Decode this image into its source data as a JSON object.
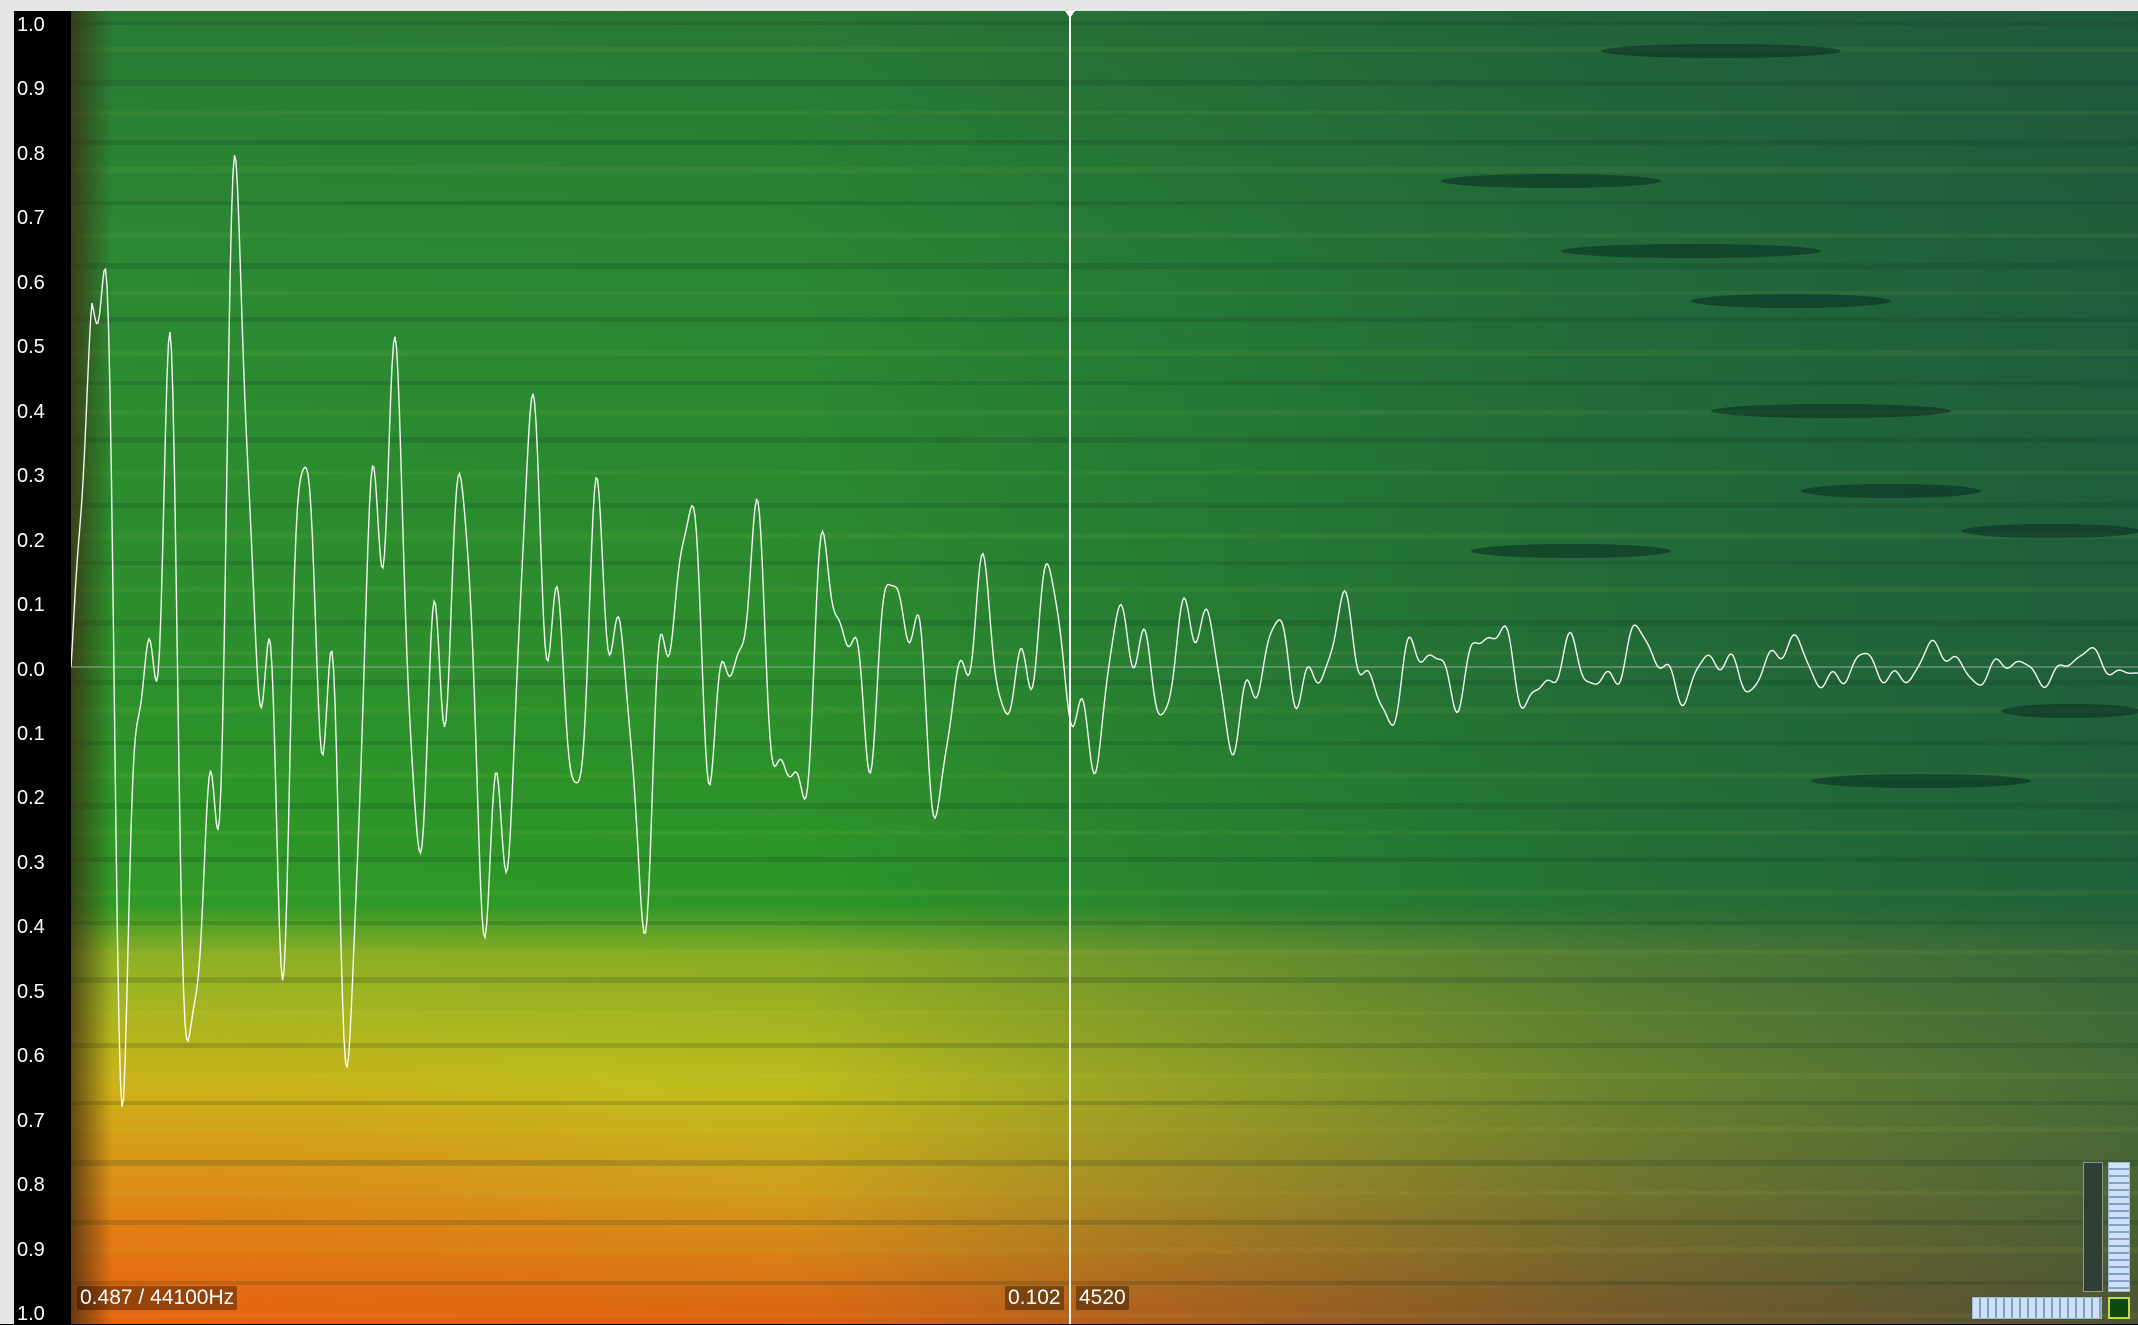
{
  "amplitude_axis": {
    "tick_labels": [
      "1.0",
      "0.9",
      "0.8",
      "0.7",
      "0.6",
      "0.5",
      "0.4",
      "0.3",
      "0.2",
      "0.1",
      "0.0",
      "0.1",
      "0.2",
      "0.3",
      "0.4",
      "0.5",
      "0.6",
      "0.7",
      "0.8",
      "0.9",
      "1.0"
    ]
  },
  "status": {
    "zoom_and_rate": "0.487 / 44100Hz",
    "cursor_value": "0.102",
    "cursor_sample": "4520"
  },
  "colors": {
    "wave": "#ffffff",
    "cursor": "#ffffff",
    "hot": "#e8620f",
    "warm": "#c9c21a",
    "mid": "#2c8a32",
    "cool": "#1a4e40"
  },
  "icons": {
    "vertical_zoom": "vertical-zoom-slider-icon",
    "horizontal_zoom": "horizontal-zoom-slider-icon",
    "zoom_reset": "zoom-reset-icon"
  }
}
